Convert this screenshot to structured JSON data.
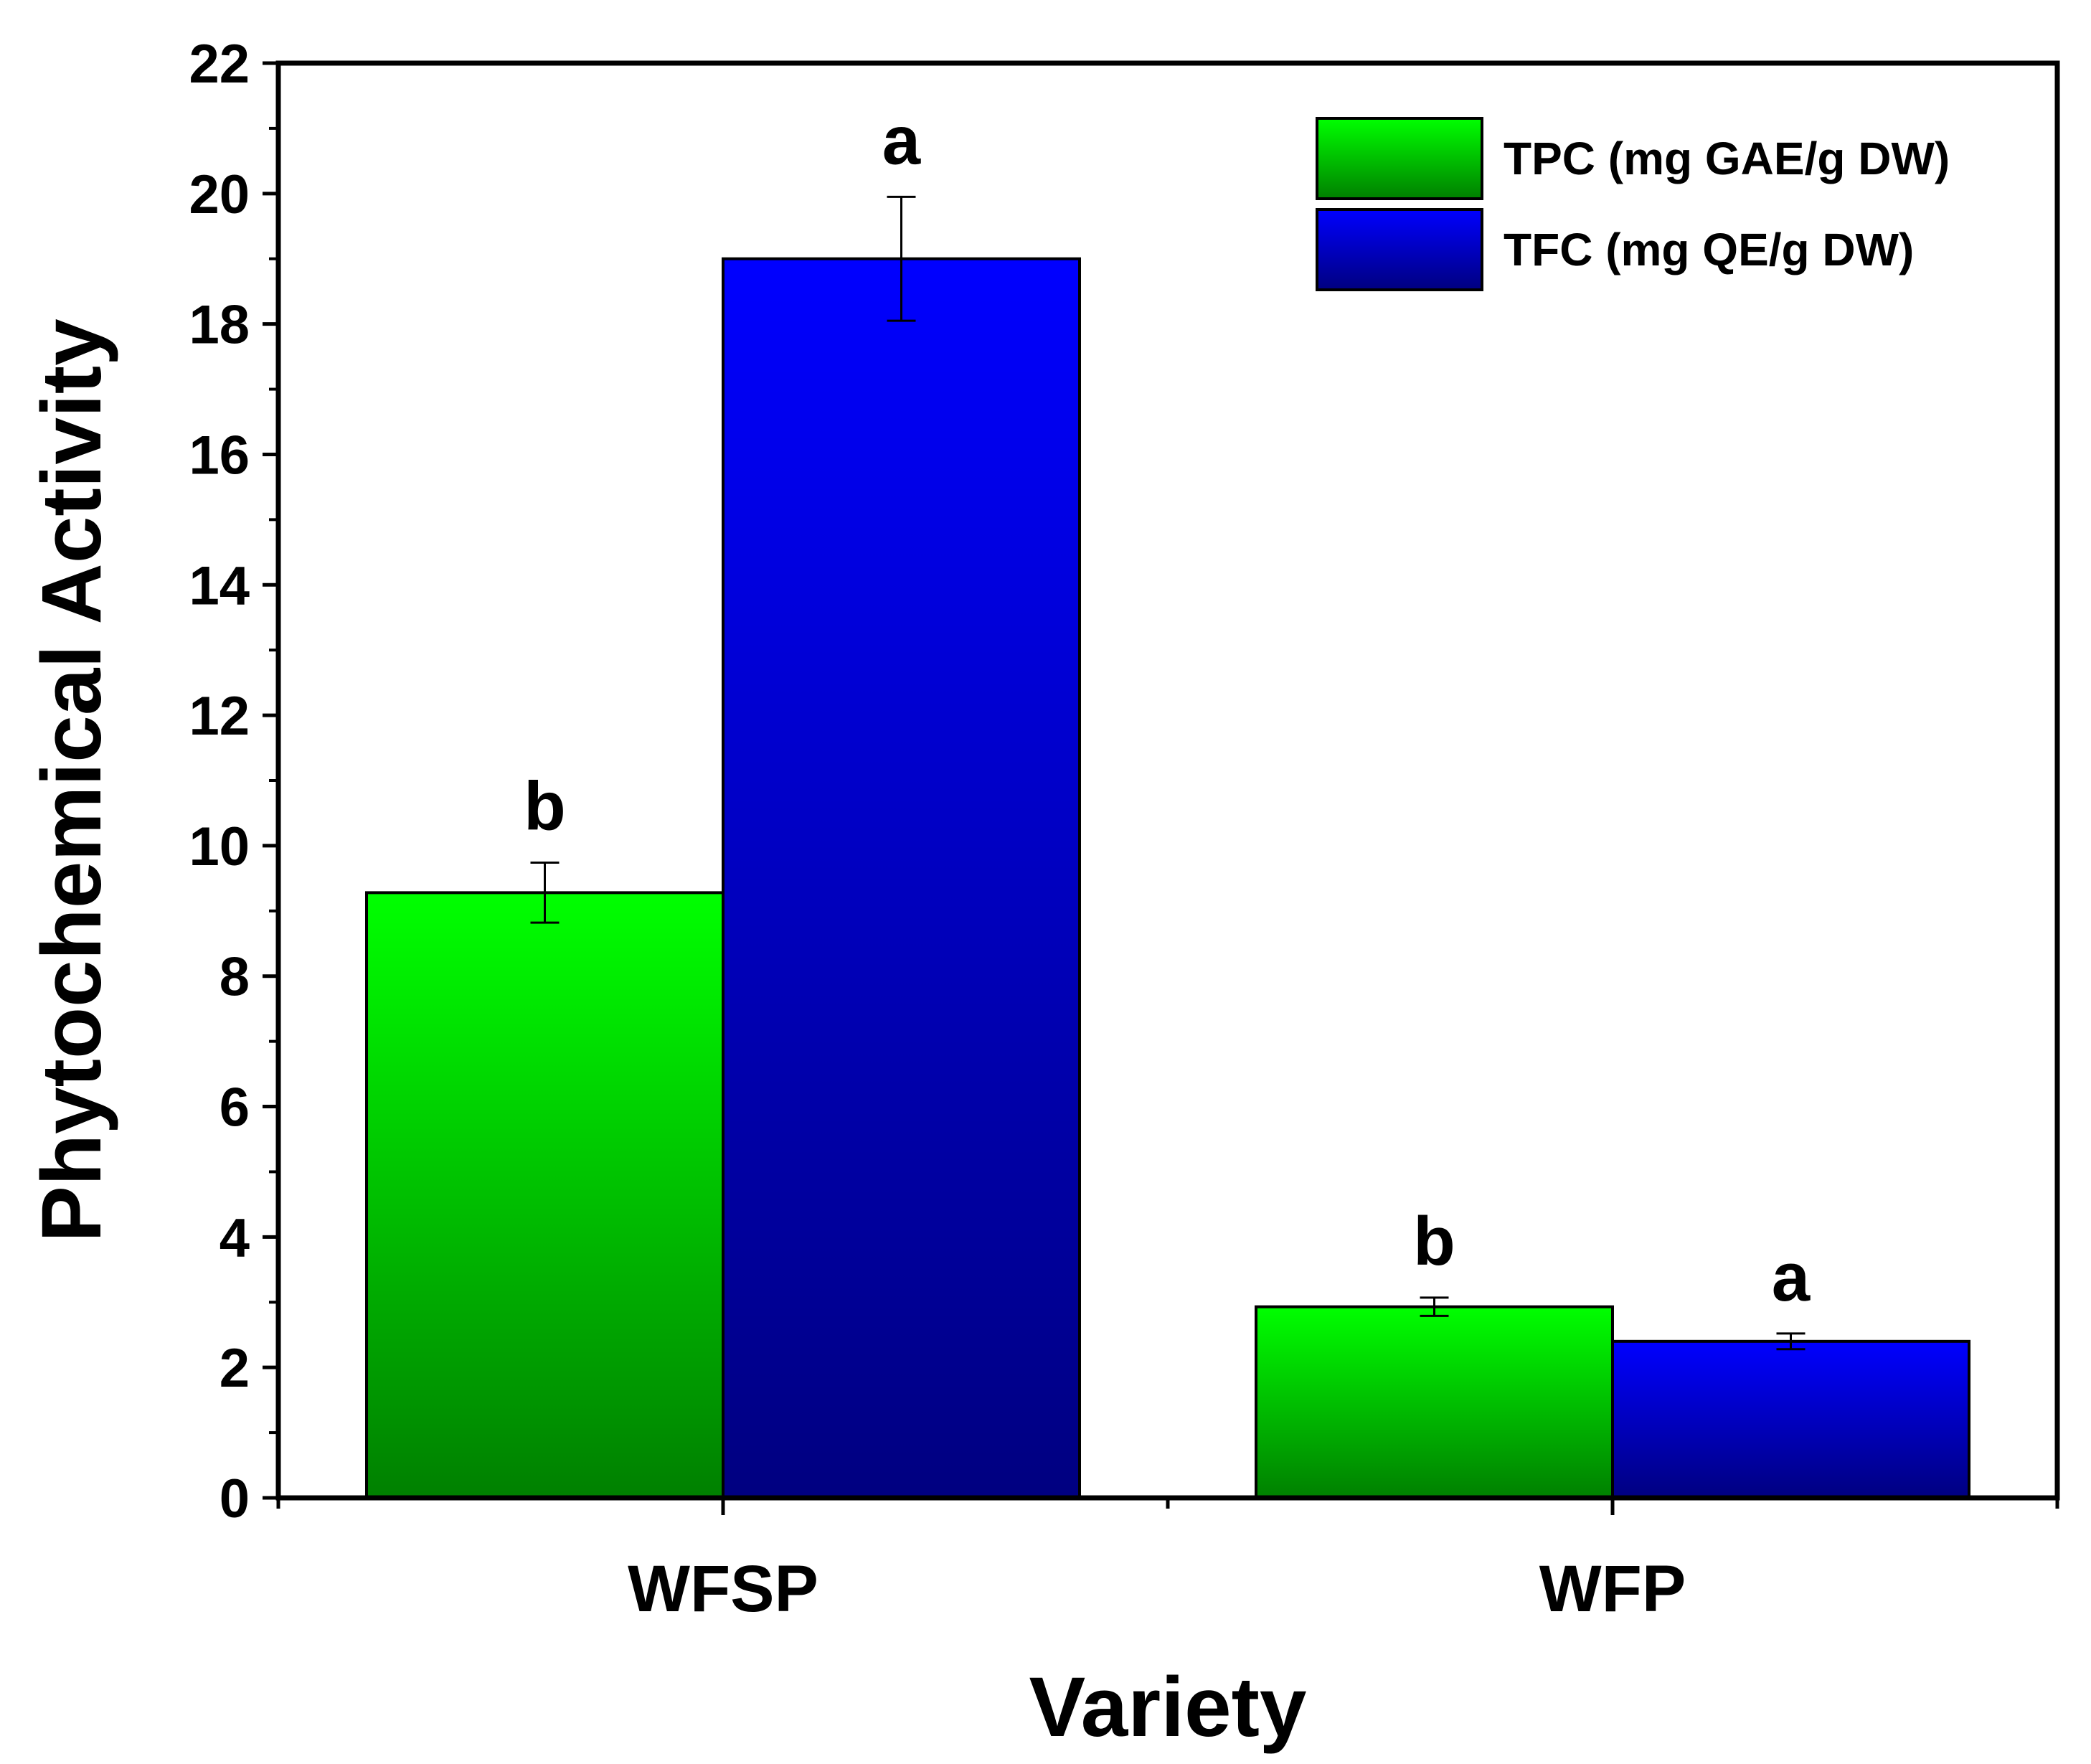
{
  "chart_data": {
    "type": "bar",
    "title": "",
    "xlabel": "Variety",
    "ylabel": "Phytochemical Activity",
    "ylim": [
      0,
      22
    ],
    "yticks": [
      "0",
      "2",
      "4",
      "6",
      "8",
      "10",
      "12",
      "14",
      "16",
      "18",
      "20",
      "22"
    ],
    "categories": [
      "WFSP",
      "WFP"
    ],
    "legend_position": "top-right",
    "series": [
      {
        "name": "TPC (mg GAE/g DW)",
        "color_top": "#00ff00",
        "color_bottom": "#008000",
        "values": [
          9.28,
          2.93
        ],
        "errors": [
          0.46,
          0.14
        ],
        "letters": [
          "b",
          "b"
        ]
      },
      {
        "name": "TFC (mg QE/g DW)",
        "color_top": "#0000ff",
        "color_bottom": "#000080",
        "values": [
          19.0,
          2.4
        ],
        "errors": [
          0.95,
          0.12
        ],
        "letters": [
          "a",
          "a"
        ]
      }
    ]
  }
}
